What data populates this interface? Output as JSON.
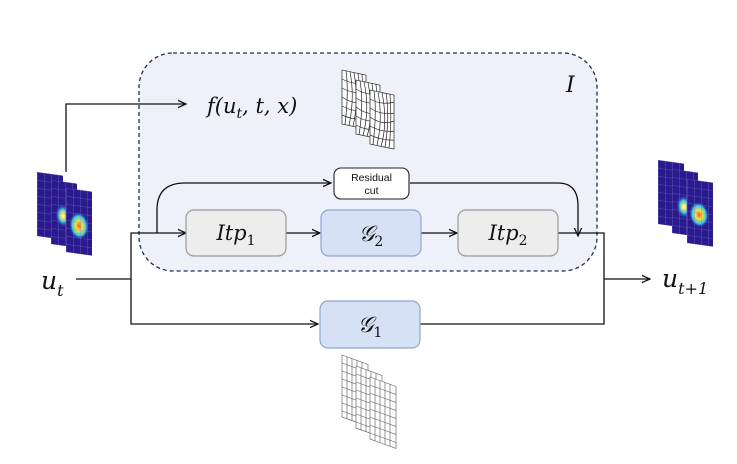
{
  "region": {
    "label": "I"
  },
  "input": {
    "base": "u",
    "sub": "t"
  },
  "output": {
    "base": "u",
    "sub": "t+1"
  },
  "forcing": {
    "func": "f",
    "args_prefix": "(u",
    "args_sub": "t",
    "args_suffix": ", t, x)"
  },
  "residual": {
    "line1": "Residual",
    "line2": "cut"
  },
  "blocks": {
    "itp1": {
      "base": "Itp",
      "sub": "1"
    },
    "g2": {
      "base": "𝒢",
      "sub": "2"
    },
    "itp2": {
      "base": "Itp",
      "sub": "2"
    },
    "g1": {
      "base": "𝒢",
      "sub": "1"
    }
  },
  "colors": {
    "region_fill": "#eef1f9",
    "region_border": "#1f2e55",
    "itp_fill": "#ededed",
    "itp_border": "#9a9a9a",
    "g_fill": "#d6e1f5",
    "g_border": "#8fa6cf",
    "field_dark": "#2a1a8e",
    "field_hot": "#1cc4e8"
  }
}
